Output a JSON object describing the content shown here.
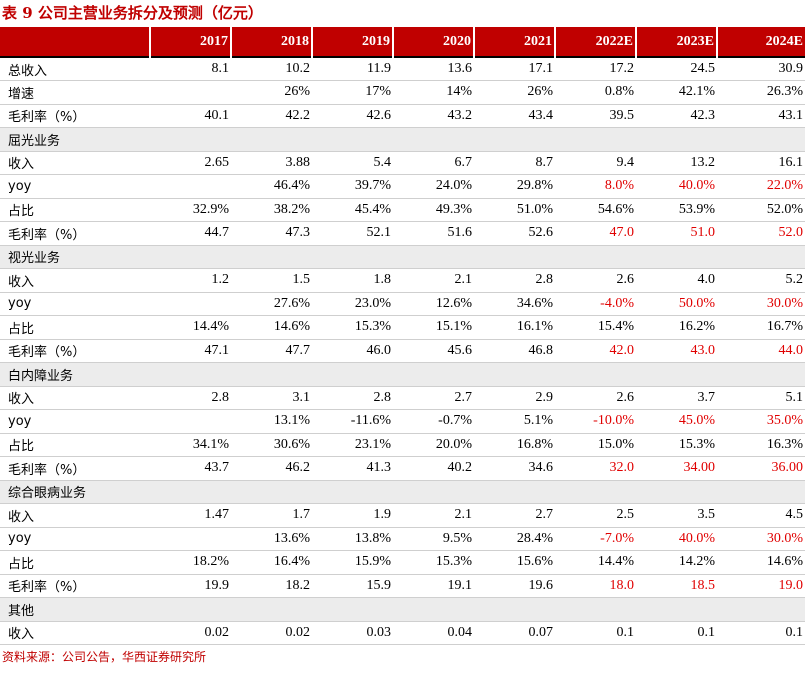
{
  "title": "表 9 公司主营业务拆分及预测（亿元）",
  "header": [
    "",
    "2017",
    "2018",
    "2019",
    "2020",
    "2021",
    "2022E",
    "2023E",
    "2024E"
  ],
  "rows": [
    {
      "type": "data",
      "label": "总收入",
      "cells": [
        "8.1",
        "10.2",
        "11.9",
        "13.6",
        "17.1",
        "17.2",
        "24.5",
        "30.9"
      ],
      "red": [
        false,
        false,
        false,
        false,
        false,
        false,
        false,
        false
      ]
    },
    {
      "type": "data",
      "label": "增速",
      "cells": [
        "",
        "26%",
        "17%",
        "14%",
        "26%",
        "0.8%",
        "42.1%",
        "26.3%"
      ],
      "red": [
        false,
        false,
        false,
        false,
        false,
        false,
        false,
        false
      ]
    },
    {
      "type": "data",
      "label": "毛利率（%）",
      "cells": [
        "40.1",
        "42.2",
        "42.6",
        "43.2",
        "43.4",
        "39.5",
        "42.3",
        "43.1"
      ],
      "red": [
        false,
        false,
        false,
        false,
        false,
        false,
        false,
        false
      ]
    },
    {
      "type": "section",
      "label": "屈光业务"
    },
    {
      "type": "data",
      "label": "收入",
      "cells": [
        "2.65",
        "3.88",
        "5.4",
        "6.7",
        "8.7",
        "9.4",
        "13.2",
        "16.1"
      ],
      "red": [
        false,
        false,
        false,
        false,
        false,
        false,
        false,
        false
      ]
    },
    {
      "type": "data",
      "label": "yoy",
      "cells": [
        "",
        "46.4%",
        "39.7%",
        "24.0%",
        "29.8%",
        "8.0%",
        "40.0%",
        "22.0%"
      ],
      "red": [
        false,
        false,
        false,
        false,
        false,
        true,
        true,
        true
      ]
    },
    {
      "type": "data",
      "label": "占比",
      "cells": [
        "32.9%",
        "38.2%",
        "45.4%",
        "49.3%",
        "51.0%",
        "54.6%",
        "53.9%",
        "52.0%"
      ],
      "red": [
        false,
        false,
        false,
        false,
        false,
        false,
        false,
        false
      ]
    },
    {
      "type": "data",
      "label": "毛利率（%）",
      "cells": [
        "44.7",
        "47.3",
        "52.1",
        "51.6",
        "52.6",
        "47.0",
        "51.0",
        "52.0"
      ],
      "red": [
        false,
        false,
        false,
        false,
        false,
        true,
        true,
        true
      ]
    },
    {
      "type": "section",
      "label": "视光业务"
    },
    {
      "type": "data",
      "label": "收入",
      "cells": [
        "1.2",
        "1.5",
        "1.8",
        "2.1",
        "2.8",
        "2.6",
        "4.0",
        "5.2"
      ],
      "red": [
        false,
        false,
        false,
        false,
        false,
        false,
        false,
        false
      ]
    },
    {
      "type": "data",
      "label": "yoy",
      "cells": [
        "",
        "27.6%",
        "23.0%",
        "12.6%",
        "34.6%",
        "-4.0%",
        "50.0%",
        "30.0%"
      ],
      "red": [
        false,
        false,
        false,
        false,
        false,
        true,
        true,
        true
      ]
    },
    {
      "type": "data",
      "label": "占比",
      "cells": [
        "14.4%",
        "14.6%",
        "15.3%",
        "15.1%",
        "16.1%",
        "15.4%",
        "16.2%",
        "16.7%"
      ],
      "red": [
        false,
        false,
        false,
        false,
        false,
        false,
        false,
        false
      ]
    },
    {
      "type": "data",
      "label": "毛利率（%）",
      "cells": [
        "47.1",
        "47.7",
        "46.0",
        "45.6",
        "46.8",
        "42.0",
        "43.0",
        "44.0"
      ],
      "red": [
        false,
        false,
        false,
        false,
        false,
        true,
        true,
        true
      ]
    },
    {
      "type": "section",
      "label": "白内障业务"
    },
    {
      "type": "data",
      "label": "收入",
      "cells": [
        "2.8",
        "3.1",
        "2.8",
        "2.7",
        "2.9",
        "2.6",
        "3.7",
        "5.1"
      ],
      "red": [
        false,
        false,
        false,
        false,
        false,
        false,
        false,
        false
      ]
    },
    {
      "type": "data",
      "label": "yoy",
      "cells": [
        "",
        "13.1%",
        "-11.6%",
        "-0.7%",
        "5.1%",
        "-10.0%",
        "45.0%",
        "35.0%"
      ],
      "red": [
        false,
        false,
        false,
        false,
        false,
        true,
        true,
        true
      ]
    },
    {
      "type": "data",
      "label": "占比",
      "cells": [
        "34.1%",
        "30.6%",
        "23.1%",
        "20.0%",
        "16.8%",
        "15.0%",
        "15.3%",
        "16.3%"
      ],
      "red": [
        false,
        false,
        false,
        false,
        false,
        false,
        false,
        false
      ]
    },
    {
      "type": "data",
      "label": "毛利率（%）",
      "cells": [
        "43.7",
        "46.2",
        "41.3",
        "40.2",
        "34.6",
        "32.0",
        "34.00",
        "36.00"
      ],
      "red": [
        false,
        false,
        false,
        false,
        false,
        true,
        true,
        true
      ]
    },
    {
      "type": "section",
      "label": "综合眼病业务"
    },
    {
      "type": "data",
      "label": "收入",
      "cells": [
        "1.47",
        "1.7",
        "1.9",
        "2.1",
        "2.7",
        "2.5",
        "3.5",
        "4.5"
      ],
      "red": [
        false,
        false,
        false,
        false,
        false,
        false,
        false,
        false
      ]
    },
    {
      "type": "data",
      "label": "yoy",
      "cells": [
        "",
        "13.6%",
        "13.8%",
        "9.5%",
        "28.4%",
        "-7.0%",
        "40.0%",
        "30.0%"
      ],
      "red": [
        false,
        false,
        false,
        false,
        false,
        true,
        true,
        true
      ]
    },
    {
      "type": "data",
      "label": "占比",
      "cells": [
        "18.2%",
        "16.4%",
        "15.9%",
        "15.3%",
        "15.6%",
        "14.4%",
        "14.2%",
        "14.6%"
      ],
      "red": [
        false,
        false,
        false,
        false,
        false,
        false,
        false,
        false
      ]
    },
    {
      "type": "data",
      "label": "毛利率（%）",
      "cells": [
        "19.9",
        "18.2",
        "15.9",
        "19.1",
        "19.6",
        "18.0",
        "18.5",
        "19.0"
      ],
      "red": [
        false,
        false,
        false,
        false,
        false,
        true,
        true,
        true
      ]
    },
    {
      "type": "section",
      "label": "其他"
    },
    {
      "type": "data",
      "label": "收入",
      "cells": [
        "0.02",
        "0.02",
        "0.03",
        "0.04",
        "0.07",
        "0.1",
        "0.1",
        "0.1"
      ],
      "red": [
        false,
        false,
        false,
        false,
        false,
        false,
        false,
        false
      ]
    }
  ],
  "source": "资料来源：公司公告，华西证券研究所",
  "colors": {
    "accent": "#c00000",
    "forecast_red": "#e00000",
    "section_bg": "#ececec"
  }
}
